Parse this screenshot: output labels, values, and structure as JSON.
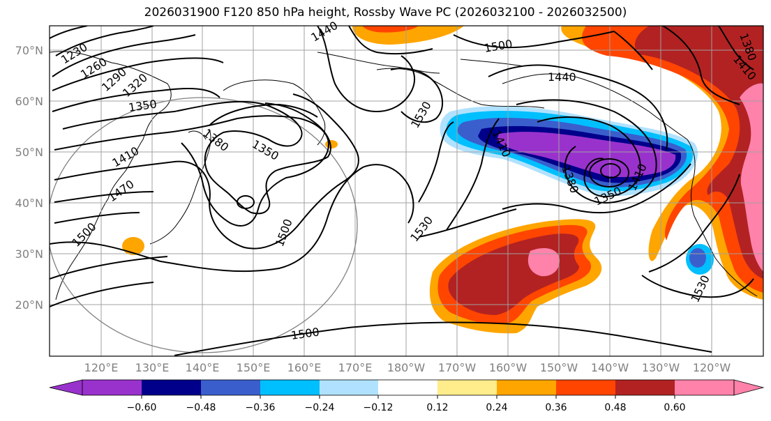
{
  "title": "2026031900 F120 850 hPa height, Rossby Wave PC (2026032100 - 2026032500)",
  "lat_labels": [
    "70°N",
    "60°N",
    "50°N",
    "40°N",
    "30°N",
    "20°N"
  ],
  "lon_labels": [
    "120°E",
    "130°E",
    "140°E",
    "150°E",
    "160°E",
    "170°E",
    "180°W",
    "170°W",
    "160°W",
    "150°W",
    "140°W",
    "130°W",
    "120°W"
  ],
  "contour_labels": [
    "1230",
    "1260",
    "1290",
    "1320",
    "1350",
    "1380",
    "1350",
    "1410",
    "1470",
    "1500",
    "1440",
    "1500",
    "1530",
    "1500",
    "1530",
    "1440",
    "1410",
    "1380",
    "1350",
    "1410",
    "1530",
    "1500",
    "1380",
    "1410"
  ],
  "colorbar": {
    "ticks": [
      "−0.60",
      "−0.48",
      "−0.36",
      "−0.24",
      "−0.12",
      "0.12",
      "0.24",
      "0.36",
      "0.48",
      "0.60"
    ],
    "colors": [
      "#9932cc",
      "#00008b",
      "#3a5fcd",
      "#00bfff",
      "#b0e2ff",
      "#ffffff",
      "#ffec8b",
      "#ffa500",
      "#ff4500",
      "#b22222",
      "#ff82ab"
    ]
  }
}
